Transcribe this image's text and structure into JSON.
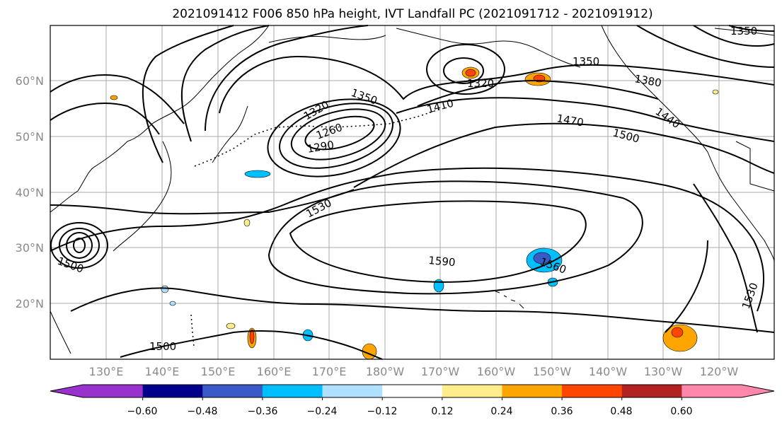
{
  "title": "2021091412 F006 850 hPa height, IVT Landfall PC (2021091712 - 2021091912)",
  "lat_labels": [
    "60°N",
    "50°N",
    "40°N",
    "30°N",
    "20°N"
  ],
  "lon_labels": [
    "130°E",
    "140°E",
    "150°E",
    "160°E",
    "170°E",
    "180°W",
    "170°W",
    "160°W",
    "150°W",
    "140°W",
    "130°W",
    "120°W"
  ],
  "colorbar": {
    "colors": [
      "#9932cc",
      "#00008b",
      "#3a5bc7",
      "#00bfff",
      "#b0e0ff",
      "#ffffff",
      "#ffec8b",
      "#ffa500",
      "#ff4500",
      "#b22222",
      "#ff88aa"
    ],
    "tick_labels": [
      "−0.60",
      "−0.48",
      "−0.36",
      "−0.24",
      "−0.12",
      "0.12",
      "0.24",
      "0.36",
      "0.48",
      "0.60"
    ]
  },
  "contour_labels": [
    "1320",
    "1350",
    "1260",
    "1290",
    "1410",
    "1470",
    "1500",
    "1350",
    "1380",
    "1320",
    "1440",
    "1350",
    "1530",
    "1590",
    "1560",
    "1500",
    "1530",
    "1500"
  ]
}
